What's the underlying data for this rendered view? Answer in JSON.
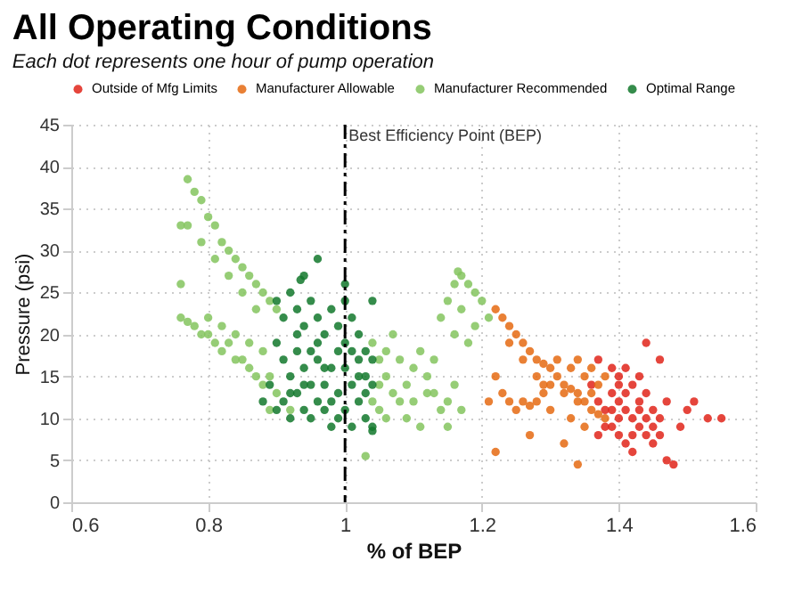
{
  "chart_data": {
    "type": "scatter",
    "title": "All Operating Conditions",
    "subtitle": "Each dot represents one hour of pump operation",
    "xlabel": "% of BEP",
    "ylabel": "Pressure (psi)",
    "xlim": [
      0.6,
      1.6
    ],
    "xticks": [
      0.6,
      0.8,
      1,
      1.2,
      1.4,
      1.6
    ],
    "ylim": [
      0,
      45
    ],
    "yticks": [
      0,
      5,
      10,
      15,
      20,
      25,
      30,
      35,
      40,
      45
    ],
    "grid": true,
    "legend": "top",
    "marker": "circle",
    "ref_lines": [
      {
        "axis": "x",
        "value": 1,
        "label": "Best Efficiency Point (BEP)",
        "color": "#000000",
        "line_style": "dashdot"
      }
    ],
    "series": [
      {
        "name": "Outside of Mfg Limits",
        "color": "#e0241a",
        "x": [
          1.37,
          1.4,
          1.39,
          1.4,
          1.41,
          1.42,
          1.43,
          1.44,
          1.45,
          1.38,
          1.39,
          1.4,
          1.41,
          1.42,
          1.43,
          1.44,
          1.45,
          1.46,
          1.47,
          1.4,
          1.41,
          1.42,
          1.43,
          1.44,
          1.46,
          1.39,
          1.37,
          1.38,
          1.4,
          1.42,
          1.44,
          1.45,
          1.46,
          1.47,
          1.48,
          1.5,
          1.51,
          1.53,
          1.55,
          1.49,
          1.41,
          1.43,
          1.39,
          1.36,
          1.37
        ],
        "values": [
          17,
          15,
          13,
          12,
          11,
          10,
          9,
          8,
          7,
          11,
          9,
          8,
          7,
          6,
          12,
          13,
          11,
          10,
          12,
          14,
          16,
          14,
          15,
          19,
          17,
          16,
          12,
          9,
          10,
          8,
          10,
          9,
          8,
          5,
          4.5,
          11,
          12,
          10,
          10,
          9,
          13,
          11,
          11,
          14,
          8
        ]
      },
      {
        "name": "Manufacturer Allowable",
        "color": "#e56a12",
        "x": [
          1.22,
          1.23,
          1.24,
          1.25,
          1.26,
          1.27,
          1.28,
          1.29,
          1.3,
          1.31,
          1.32,
          1.33,
          1.34,
          1.35,
          1.36,
          1.37,
          1.38,
          1.24,
          1.26,
          1.28,
          1.3,
          1.32,
          1.34,
          1.36,
          1.33,
          1.35,
          1.37,
          1.31,
          1.29,
          1.38,
          1.36,
          1.34,
          1.22,
          1.23,
          1.24,
          1.25,
          1.26,
          1.27,
          1.28,
          1.29,
          1.3,
          1.27,
          1.32,
          1.34,
          1.22,
          1.35,
          1.33,
          1.21
        ],
        "values": [
          23,
          22,
          21,
          20,
          19,
          18,
          17,
          16.5,
          16,
          15,
          14,
          13.5,
          13,
          12,
          11,
          10.5,
          10,
          19,
          17,
          15,
          14,
          13,
          12,
          13,
          16,
          15,
          14,
          17,
          14,
          15,
          16,
          17,
          15,
          13,
          12,
          11,
          12,
          11.5,
          12,
          13,
          11,
          8,
          7,
          4.5,
          6,
          9,
          10,
          12
        ]
      },
      {
        "name": "Manufacturer Recommended",
        "color": "#84c45e",
        "x": [
          0.77,
          0.78,
          0.79,
          0.8,
          0.81,
          0.82,
          0.83,
          0.84,
          0.85,
          0.86,
          0.87,
          0.88,
          0.89,
          0.9,
          0.76,
          0.77,
          0.79,
          0.81,
          0.83,
          0.85,
          0.87,
          0.76,
          0.76,
          0.77,
          0.78,
          0.79,
          0.8,
          0.81,
          0.82,
          0.83,
          0.84,
          0.85,
          0.86,
          0.87,
          0.88,
          0.89,
          0.8,
          0.82,
          0.84,
          0.86,
          0.88,
          0.9,
          0.89,
          0.92,
          1.04,
          1.05,
          1.06,
          1.07,
          1.08,
          1.09,
          1.1,
          1.11,
          1.12,
          1.13,
          1.14,
          1.15,
          1.16,
          1.05,
          1.06,
          1.07,
          1.08,
          1.09,
          1.1,
          1.11,
          1.12,
          1.13,
          1.15,
          1.17,
          1.05,
          1.04,
          1.06,
          1.14,
          1.15,
          1.16,
          1.165,
          1.17,
          1.18,
          1.19,
          1.2,
          1.21,
          1.19,
          1.17,
          1.18,
          1.16,
          1.03
        ],
        "values": [
          38.5,
          37,
          36,
          34,
          33,
          31,
          30,
          29,
          28,
          27,
          26,
          25,
          24,
          23,
          33,
          33,
          31,
          29,
          27,
          25,
          23,
          26,
          22,
          21.5,
          21,
          20,
          20,
          19,
          18,
          19,
          17,
          17,
          16,
          15,
          14,
          15,
          22,
          21,
          20,
          19,
          18,
          13,
          11,
          11,
          19,
          17,
          15,
          13,
          12,
          14,
          16,
          18,
          15,
          13,
          11,
          12,
          14,
          11,
          10,
          20,
          17,
          10,
          12,
          9,
          13,
          17,
          9,
          11,
          14,
          12,
          18,
          22,
          24,
          26,
          27.5,
          27,
          26,
          25,
          24,
          22,
          21,
          23,
          19,
          20,
          5.5
        ]
      },
      {
        "name": "Optimal Range",
        "color": "#12782c",
        "x": [
          0.9,
          0.91,
          0.92,
          0.93,
          0.94,
          0.95,
          0.96,
          0.97,
          0.98,
          0.99,
          1.0,
          1.01,
          1.02,
          1.03,
          1.04,
          0.9,
          0.91,
          0.92,
          0.93,
          0.94,
          0.95,
          0.96,
          0.97,
          0.98,
          0.99,
          1.0,
          1.01,
          1.02,
          1.03,
          1.04,
          0.91,
          0.92,
          0.93,
          0.94,
          0.95,
          0.96,
          0.97,
          0.98,
          0.99,
          1.0,
          1.01,
          1.02,
          1.03,
          1.04,
          1.0,
          0.96,
          0.93,
          0.98,
          1.02,
          0.95,
          0.92,
          0.9,
          0.94,
          0.97,
          1.03,
          1.01,
          0.99,
          0.89,
          0.88,
          0.96,
          0.94,
          0.935,
          1.0,
          1.04,
          1.04
        ],
        "values": [
          24,
          22,
          25,
          23,
          21,
          24,
          22,
          20,
          23,
          21,
          24,
          22,
          20,
          18,
          17,
          19,
          17,
          15,
          13,
          11,
          10,
          12,
          14,
          16,
          18,
          16,
          14,
          12,
          10,
          9,
          12,
          10,
          18,
          16,
          14,
          17,
          11,
          9,
          13,
          11,
          9,
          15,
          13,
          14,
          19,
          19,
          20,
          12,
          17,
          18,
          13,
          11,
          14,
          16,
          15,
          18,
          10,
          14,
          12,
          29,
          27,
          26.5,
          26,
          24,
          8.5
        ]
      }
    ]
  }
}
